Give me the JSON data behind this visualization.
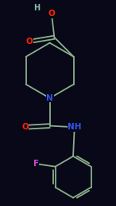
{
  "bg_color": "#080818",
  "bond_color": "#8ab08a",
  "bond_width": 1.3,
  "atom_colors": {
    "O": "#ff2200",
    "N": "#3355ee",
    "F": "#cc44cc",
    "H": "#88bbaa",
    "C": "#8ab08a"
  },
  "figsize": [
    1.46,
    2.58
  ],
  "dpi": 100,
  "fs": 7.5
}
